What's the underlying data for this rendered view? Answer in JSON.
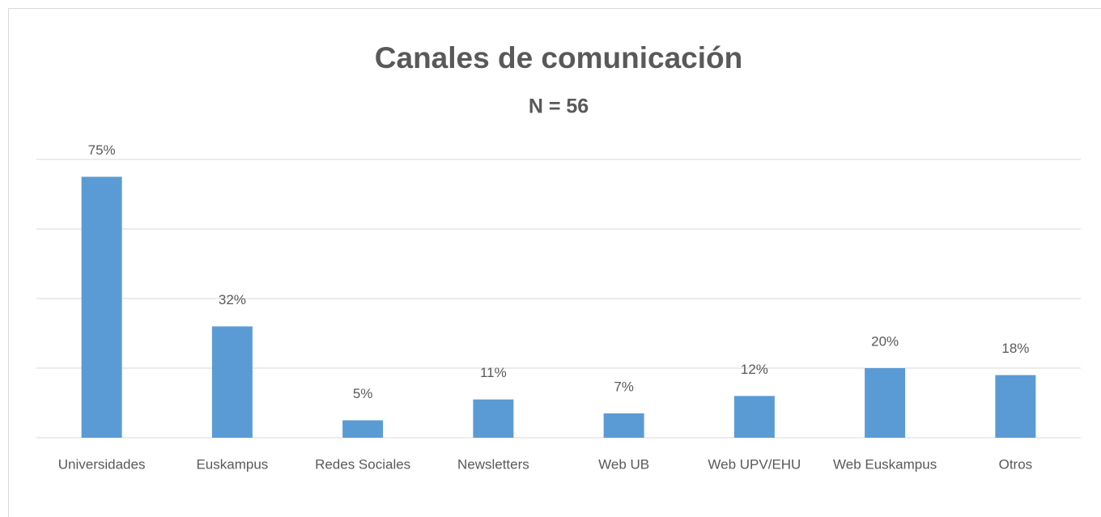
{
  "chart_data": {
    "type": "bar",
    "title": "Canales de comunicación",
    "subtitle": "N = 56",
    "categories": [
      "Universidades",
      "Euskampus",
      "Redes Sociales",
      "Newsletters",
      "Web UB",
      "Web UPV/EHU",
      "Web Euskampus",
      "Otros"
    ],
    "values": [
      75,
      32,
      5,
      11,
      7,
      12,
      20,
      18
    ],
    "value_labels": [
      "75%",
      "32%",
      "5%",
      "11%",
      "7%",
      "12%",
      "20%",
      "18%"
    ],
    "color": "#5b9bd5",
    "ylim": [
      0,
      80
    ],
    "yticks": [
      0,
      20,
      40,
      60,
      80
    ],
    "grid": true
  }
}
